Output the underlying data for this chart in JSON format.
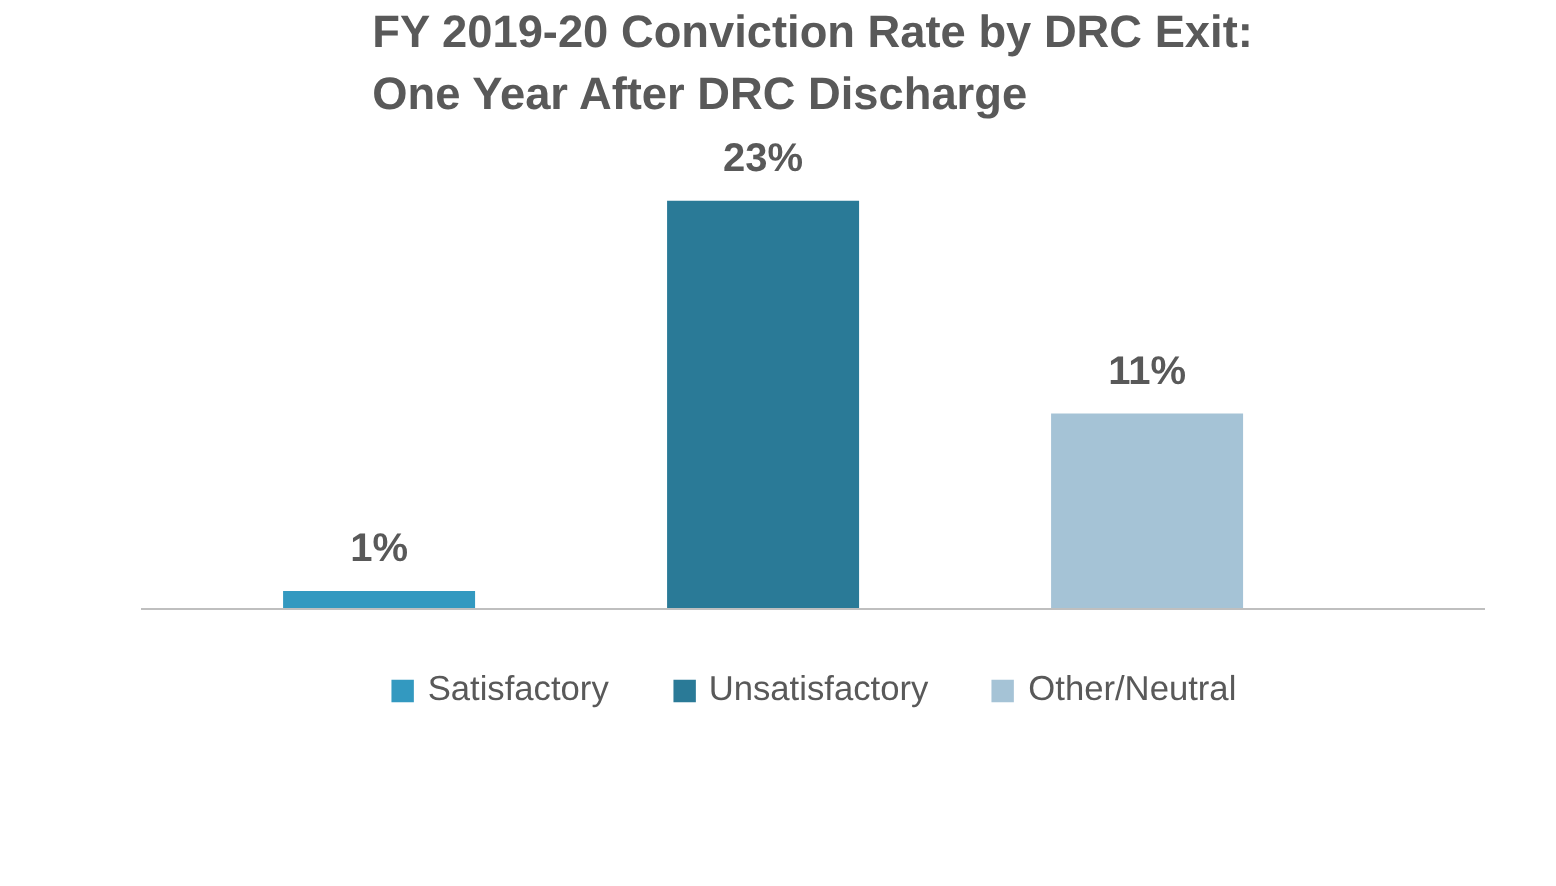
{
  "chart_data": {
    "type": "bar",
    "title": "FY 2019-20 Conviction Rate by DRC Exit:\nOne Year After DRC Discharge",
    "categories": [
      null,
      null,
      null
    ],
    "series": [
      {
        "name": "Satisfactory",
        "color": "#3399c0",
        "values": [
          1,
          null,
          null
        ],
        "value_labels": [
          "1%",
          null,
          null
        ]
      },
      {
        "name": "Unsatisfactory",
        "color": "#2a7a97",
        "values": [
          null,
          23,
          null
        ],
        "value_labels": [
          null,
          "23%",
          null
        ]
      },
      {
        "name": "Other/Neutral",
        "color": "#a5c3d6",
        "values": [
          null,
          null,
          11
        ],
        "value_labels": [
          null,
          null,
          "11%"
        ]
      }
    ],
    "stacked": true,
    "legend": "bottom",
    "tick_labels": false
  }
}
